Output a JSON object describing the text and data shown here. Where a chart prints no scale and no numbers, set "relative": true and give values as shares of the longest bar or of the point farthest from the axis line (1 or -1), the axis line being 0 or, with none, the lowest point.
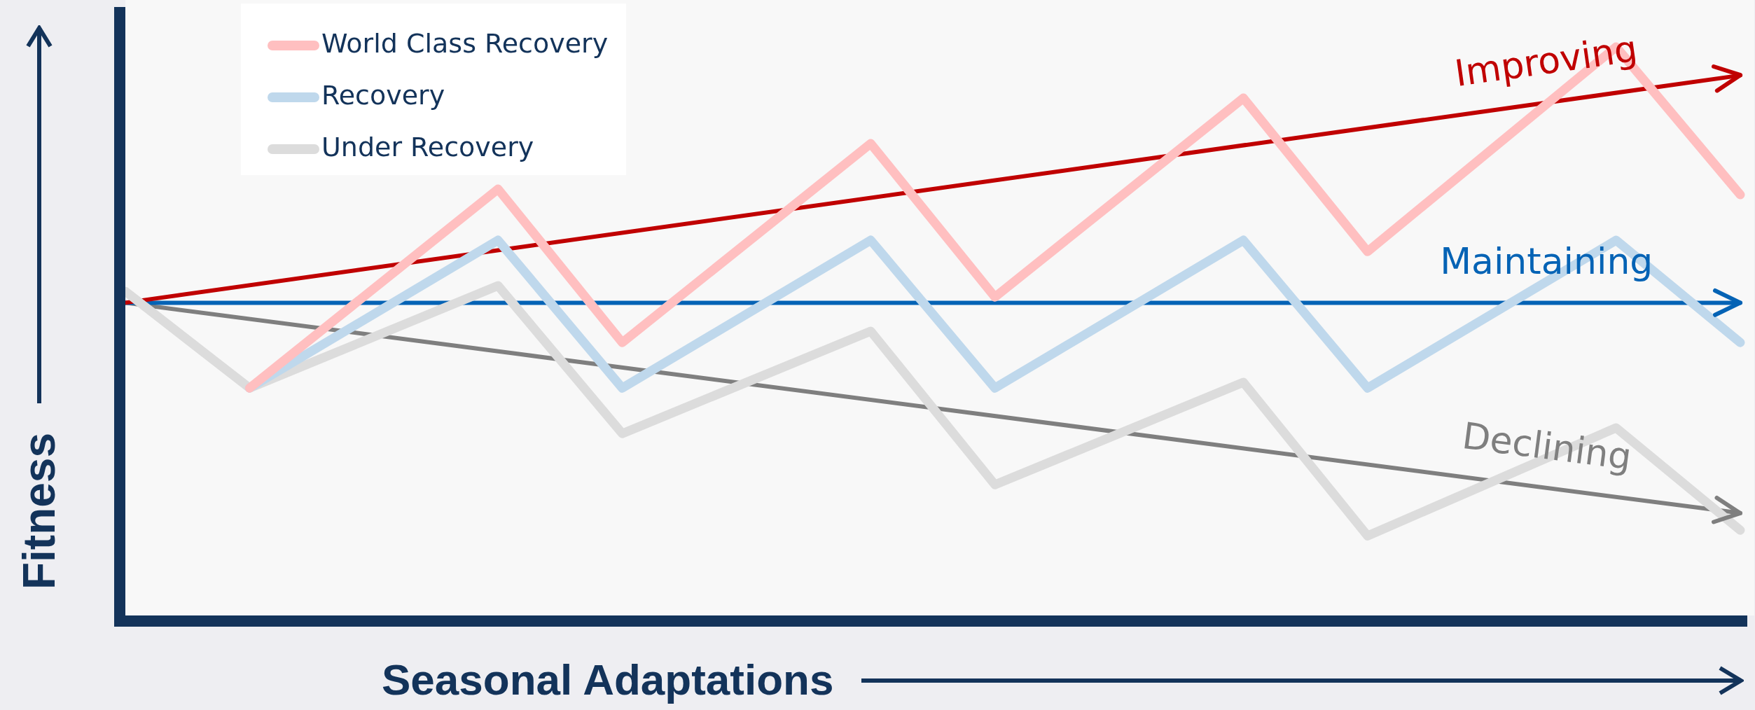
{
  "chart_data": {
    "type": "line",
    "relative": true,
    "xlabel": "Seasonal Adaptations",
    "ylabel": "Fitness",
    "legend": "top left",
    "line_style": "solid",
    "categories": [
      null,
      null,
      null,
      null,
      null,
      null,
      null,
      null,
      null,
      null,
      null,
      null,
      null,
      null
    ],
    "series": [
      {
        "name": "World Class Recovery",
        "color": "#ffbfc0",
        "values": [
          null,
          0.4,
          null,
          0.75,
          0.48,
          null,
          0.83,
          0.56,
          null,
          0.91,
          0.64,
          null,
          1.0,
          0.74
        ]
      },
      {
        "name": "Recovery",
        "color": "#bfd8ec",
        "values": [
          null,
          0.4,
          null,
          0.66,
          0.4,
          null,
          0.66,
          0.4,
          null,
          0.66,
          0.4,
          null,
          0.66,
          0.48
        ]
      },
      {
        "name": "Under Recovery",
        "color": "#dcdcdc",
        "values": [
          0.57,
          0.4,
          null,
          0.58,
          0.32,
          null,
          0.5,
          0.23,
          null,
          0.41,
          0.14,
          null,
          0.33,
          0.15
        ]
      },
      {
        "color": "#c00000",
        "values": [
          0.55,
          null,
          null,
          null,
          null,
          null,
          null,
          null,
          null,
          null,
          null,
          null,
          null,
          0.95
        ]
      },
      {
        "color": "#0563b5",
        "values": [
          0.55,
          null,
          null,
          null,
          null,
          null,
          null,
          null,
          null,
          null,
          null,
          null,
          null,
          0.55
        ]
      },
      {
        "color": "#7f7f7f",
        "values": [
          0.55,
          null,
          null,
          null,
          null,
          null,
          null,
          null,
          null,
          null,
          null,
          null,
          null,
          0.18
        ]
      }
    ],
    "annotations": [
      "Improving",
      "Maintaining",
      "Declining"
    ]
  }
}
